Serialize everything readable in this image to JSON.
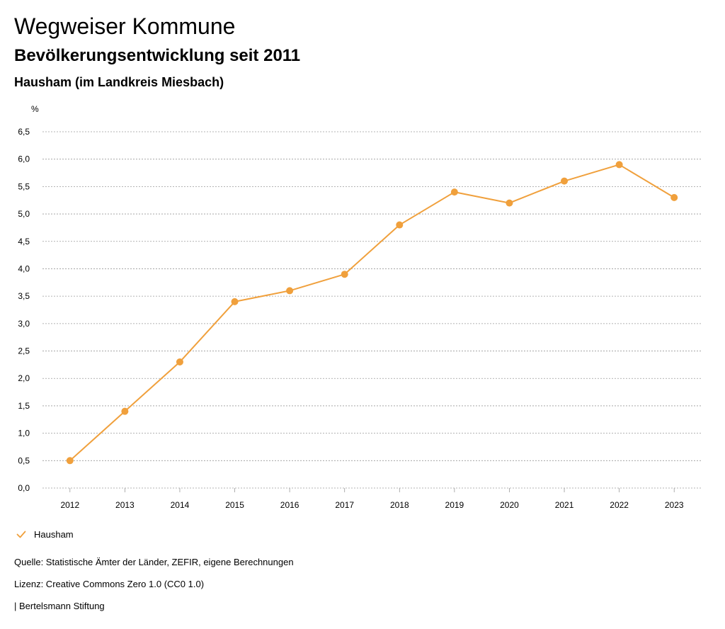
{
  "header": {
    "title": "Wegweiser Kommune",
    "subtitle": "Bevölkerungsentwicklung seit 2011",
    "region": "Hausham (im Landkreis Miesbach)"
  },
  "chart_data": {
    "type": "line",
    "ylabel": "%",
    "xlabel": "",
    "x": [
      "2012",
      "2013",
      "2014",
      "2015",
      "2016",
      "2017",
      "2018",
      "2019",
      "2020",
      "2021",
      "2022",
      "2023"
    ],
    "series": [
      {
        "name": "Hausham",
        "color": "#f0a03c",
        "values": [
          0.5,
          1.4,
          2.3,
          3.4,
          3.6,
          3.9,
          4.8,
          5.4,
          5.2,
          5.6,
          5.9,
          5.3
        ]
      }
    ],
    "ylim": [
      0,
      6.5
    ],
    "yticks": [
      0,
      0.5,
      1,
      1.5,
      2,
      2.5,
      3,
      3.5,
      4,
      4.5,
      5,
      5.5,
      6,
      6.5
    ],
    "ytick_labels": [
      "0,0",
      "0,5",
      "1,0",
      "1,5",
      "2,0",
      "2,5",
      "3,0",
      "3,5",
      "4,0",
      "4,5",
      "5,0",
      "5,5",
      "6,0",
      "6,5"
    ],
    "grid": true,
    "legend": "bottom-left"
  },
  "legend": {
    "icon": "checkmark-icon",
    "label": "Hausham"
  },
  "footer": {
    "source": "Quelle: Statistische Ämter der Länder, ZEFIR, eigene Berechnungen",
    "license": "Lizenz: Creative Commons Zero 1.0 (CC0 1.0)",
    "credit": "| Bertelsmann Stiftung"
  }
}
